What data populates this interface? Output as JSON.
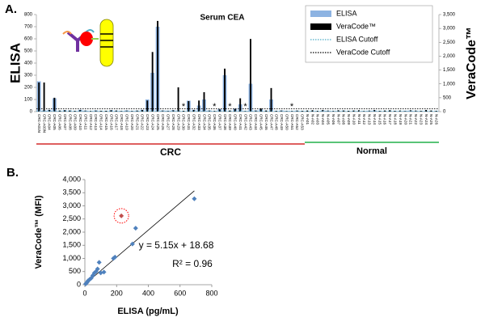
{
  "chart_data": [
    {
      "type": "bar",
      "panel": "A.",
      "title": "Serum CEA",
      "ylabel": "ELISA",
      "y2label": "VeraCode™",
      "categories": [
        "CRC-A01N",
        "CRC-A03N",
        "CRC-A04",
        "CRC-A05",
        "CRC-A06",
        "CRC-A07",
        "CRC-A08",
        "CRC-A09",
        "CRC-A10",
        "CRC-A11",
        "CRC-A12",
        "CRC-A13",
        "CRC-A14",
        "CRC-A15",
        "CRC-A16",
        "CRC-A17",
        "CRC-A18",
        "CRC-A19",
        "CRC-A20",
        "CRC-A21",
        "CRC-A22",
        "CRC-A23",
        "CRC-A24",
        "CRC-A25",
        "CRC-A26",
        "CRC-A27",
        "CRC-A28",
        "CRC-A29",
        "CRC-A30",
        "CRC-A31",
        "CRC-A32",
        "CRC-A33",
        "CRC-A34",
        "CRC-A35",
        "CRC-A36",
        "CRC-A37",
        "CRC-A38",
        "CRC-A39",
        "CRC-A40",
        "CRC-A41",
        "CRC-A42",
        "CRC-A43",
        "CRC-A44",
        "CRC-A45",
        "CRC-A46",
        "CRC-A47",
        "CRC-A48",
        "CRC-A49",
        "CRC-A50",
        "CRC-A51",
        "CRC-A52",
        "CRC-A53",
        "N-A01",
        "N-A02",
        "N-A03",
        "N-A04",
        "N-A05",
        "N-A06",
        "N-A07",
        "N-A08",
        "N-A09",
        "N-A10",
        "N-A11",
        "N-A12",
        "N-A13",
        "N-A14",
        "N-A15",
        "N-A16",
        "N-A17",
        "N-A18",
        "N-A19",
        "N-A20",
        "N-A21",
        "N-A22",
        "N-A23",
        "N-A24",
        "N-A25",
        "N-A26"
      ],
      "series": [
        {
          "name": "ELISA",
          "color": "#8db3e2",
          "values": [
            250,
            10,
            15,
            110,
            8,
            12,
            10,
            6,
            15,
            8,
            5,
            10,
            7,
            6,
            12,
            8,
            5,
            10,
            6,
            8,
            15,
            100,
            320,
            700,
            10,
            8,
            12,
            10,
            5,
            90,
            15,
            50,
            100,
            10,
            5,
            20,
            300,
            8,
            25,
            60,
            5,
            230,
            10,
            20,
            8,
            100,
            6,
            10,
            5,
            5,
            8,
            6,
            6,
            8,
            5,
            10,
            7,
            5,
            6,
            9,
            5,
            8,
            6,
            5,
            7,
            10,
            6,
            5,
            8,
            6,
            5,
            7,
            9,
            6,
            5,
            8,
            6,
            5
          ]
        },
        {
          "name": "VeraCode™",
          "color": "#000000",
          "axis": "y2",
          "values": [
            1050,
            1050,
            60,
            500,
            40,
            50,
            40,
            30,
            60,
            40,
            30,
            40,
            30,
            30,
            50,
            40,
            30,
            40,
            30,
            40,
            60,
            400,
            2150,
            3270,
            40,
            30,
            50,
            875,
            30,
            380,
            60,
            400,
            700,
            40,
            30,
            80,
            1550,
            40,
            100,
            480,
            30,
            2620,
            40,
            120,
            40,
            850,
            30,
            40,
            30,
            30,
            40,
            30,
            40,
            50,
            30,
            60,
            40,
            30,
            50,
            40,
            30,
            40,
            50,
            30,
            40,
            60,
            30,
            40,
            50,
            30,
            40,
            30,
            50,
            40,
            30,
            60,
            40,
            30
          ]
        }
      ],
      "cutoffs": [
        {
          "name": "ELISA Cutoff",
          "color": "#4bacc6",
          "value": 5
        },
        {
          "name": "VeraCode Cutoff",
          "color": "#000000",
          "axis": "y2",
          "value": 100
        }
      ],
      "markers": {
        "text": "*",
        "color": "#ff3030",
        "at_categories": [
          "CRC-A30",
          "CRC-A36",
          "CRC-A39",
          "CRC-A42",
          "CRC-A51"
        ]
      },
      "groups": [
        {
          "label": "CRC",
          "color": "#d42a2a",
          "size": 52
        },
        {
          "label": "Normal",
          "color": "#22b04a",
          "size": 26
        }
      ],
      "ylim": [
        0,
        800
      ],
      "yticks": [
        0,
        100,
        200,
        300,
        400,
        500,
        600,
        700,
        800
      ],
      "y2lim": [
        0,
        3500
      ],
      "y2ticks": [
        0,
        500,
        {
          "value": 1000,
          "label": "1,000"
        },
        {
          "value": 1500,
          "label": "1,500"
        },
        {
          "value": 2000,
          "label": "2,000"
        },
        {
          "value": 2500,
          "label": "2,500"
        },
        {
          "value": 3000,
          "label": "3,000"
        },
        {
          "value": 3500,
          "label": "3,500"
        }
      ],
      "legend": "upper right"
    },
    {
      "type": "scatter",
      "panel": "B.",
      "xlabel": "ELISA (pg/mL)",
      "ylabel": "VeraCode™ (MFI)",
      "color": "#4f81bd",
      "x": [
        5,
        10,
        15,
        20,
        30,
        40,
        50,
        60,
        70,
        80,
        90,
        100,
        120,
        180,
        190,
        300,
        320,
        690
      ],
      "values": [
        30,
        60,
        100,
        150,
        200,
        250,
        350,
        450,
        500,
        600,
        850,
        450,
        480,
        1000,
        1050,
        1550,
        2150,
        3270
      ],
      "highlight": {
        "x": 230,
        "y": 2620,
        "color": "#c0504d"
      },
      "trendline": {
        "slope": 5.15,
        "intercept": 18.68,
        "equation": "y = 5.15x + 18.68",
        "r2": "R² = 0.96"
      },
      "xlim": [
        0,
        800
      ],
      "xticks": [
        0,
        200,
        400,
        600,
        800
      ],
      "ylim": [
        0,
        4000
      ],
      "yticks": [
        0,
        500,
        {
          "value": 1000,
          "label": "1,000"
        },
        {
          "value": 1500,
          "label": "1,500"
        },
        {
          "value": 2000,
          "label": "2,000"
        },
        {
          "value": 2500,
          "label": "2,500"
        },
        {
          "value": 3000,
          "label": "3,000"
        },
        {
          "value": 3500,
          "label": "3,500"
        },
        {
          "value": 4000,
          "label": "4,000"
        }
      ]
    }
  ]
}
